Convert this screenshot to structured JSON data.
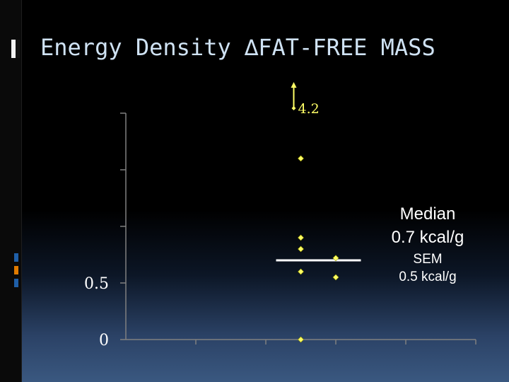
{
  "title": "Energy Density ∆FAT-FREE MASS",
  "colors": {
    "background": "#000000",
    "title": "#cfe2f3",
    "axis": "#808080",
    "points": "#ffff66",
    "median_line": "#ffffff",
    "annotation_text": "#ffffff",
    "deco_blue": "#1f5fa8",
    "deco_orange": "#e07b00"
  },
  "annotations": {
    "median_label": "Median",
    "median_value": "0.7 kcal/g",
    "sem_label": "SEM",
    "sem_value": "0.5 kcal/g"
  },
  "chart_data": {
    "type": "scatter",
    "title": "Energy Density ∆FAT-FREE MASS",
    "xlabel": "",
    "ylabel": "",
    "ylim": [
      0,
      2
    ],
    "x_categories": [
      "",
      "",
      "",
      "",
      ""
    ],
    "y_ticks": [
      {
        "value": 0,
        "label": "0"
      },
      {
        "value": 0.5,
        "label": "0.5"
      },
      {
        "value": 1.0,
        "label": ""
      },
      {
        "value": 1.5,
        "label": ""
      },
      {
        "value": 2.0,
        "label": ""
      }
    ],
    "points": [
      {
        "x": 2.5,
        "y": 0
      },
      {
        "x": 2.5,
        "y": 0.6
      },
      {
        "x": 2.5,
        "y": 0.8
      },
      {
        "x": 2.5,
        "y": 0.9
      },
      {
        "x": 2.5,
        "y": 1.6
      },
      {
        "x": 3.0,
        "y": 0.55
      },
      {
        "x": 3.0,
        "y": 0.72
      }
    ],
    "offscale_point": {
      "x": 2.5,
      "y": 4.2,
      "label": "4.2"
    },
    "median": 0.7,
    "grid": false,
    "legend": "none"
  }
}
